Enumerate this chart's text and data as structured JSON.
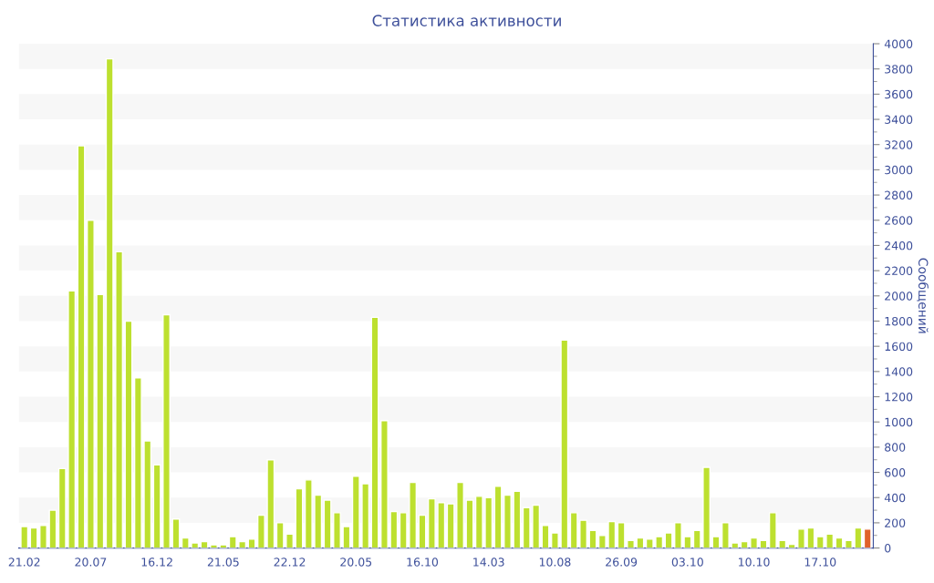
{
  "chart_data": {
    "type": "bar",
    "title": "Статистика активности",
    "ylabel": "Сообщений",
    "categories": [
      "21.02",
      null,
      null,
      null,
      null,
      null,
      null,
      "20.07",
      null,
      null,
      null,
      null,
      null,
      null,
      "16.12",
      null,
      null,
      null,
      null,
      null,
      null,
      "21.05",
      null,
      null,
      null,
      null,
      null,
      null,
      "22.12",
      null,
      null,
      null,
      null,
      null,
      null,
      "20.05",
      null,
      null,
      null,
      null,
      null,
      null,
      "16.10",
      null,
      null,
      null,
      null,
      null,
      null,
      "14.03",
      null,
      null,
      null,
      null,
      null,
      null,
      "10.08",
      null,
      null,
      null,
      null,
      null,
      null,
      "26.09",
      null,
      null,
      null,
      null,
      null,
      null,
      "03.10",
      null,
      null,
      null,
      null,
      null,
      null,
      "10.10",
      null,
      null,
      null,
      null,
      null,
      null,
      "17.10",
      null,
      null,
      null,
      null,
      null
    ],
    "values": [
      170,
      160,
      180,
      300,
      630,
      2040,
      3190,
      2600,
      2010,
      3880,
      2350,
      1800,
      1350,
      850,
      660,
      1850,
      230,
      80,
      40,
      50,
      25,
      25,
      90,
      50,
      70,
      260,
      700,
      200,
      110,
      470,
      540,
      420,
      380,
      280,
      170,
      570,
      510,
      1830,
      1010,
      290,
      280,
      520,
      260,
      390,
      360,
      350,
      520,
      380,
      410,
      400,
      490,
      420,
      450,
      320,
      340,
      180,
      120,
      1650,
      280,
      220,
      140,
      100,
      210,
      200,
      60,
      80,
      70,
      90,
      120,
      200,
      90,
      140,
      640,
      90,
      200,
      40,
      50,
      80,
      60,
      280,
      60,
      30,
      150,
      160,
      90,
      110,
      80,
      60,
      160,
      150
    ],
    "colors": [
      "#bde02f",
      "#bde02f",
      "#bde02f",
      "#bde02f",
      "#bde02f",
      "#bde02f",
      "#bde02f",
      "#bde02f",
      "#bde02f",
      "#bde02f",
      "#bde02f",
      "#bde02f",
      "#bde02f",
      "#bde02f",
      "#bde02f",
      "#bde02f",
      "#bde02f",
      "#bde02f",
      "#bde02f",
      "#bde02f",
      "#bde02f",
      "#bde02f",
      "#bde02f",
      "#bde02f",
      "#bde02f",
      "#bde02f",
      "#bde02f",
      "#bde02f",
      "#bde02f",
      "#bde02f",
      "#bde02f",
      "#bde02f",
      "#bde02f",
      "#bde02f",
      "#bde02f",
      "#bde02f",
      "#bde02f",
      "#bde02f",
      "#bde02f",
      "#bde02f",
      "#bde02f",
      "#bde02f",
      "#bde02f",
      "#bde02f",
      "#bde02f",
      "#bde02f",
      "#bde02f",
      "#bde02f",
      "#bde02f",
      "#bde02f",
      "#bde02f",
      "#bde02f",
      "#bde02f",
      "#bde02f",
      "#bde02f",
      "#bde02f",
      "#bde02f",
      "#bde02f",
      "#bde02f",
      "#bde02f",
      "#bde02f",
      "#bde02f",
      "#bde02f",
      "#bde02f",
      "#bde02f",
      "#bde02f",
      "#bde02f",
      "#bde02f",
      "#bde02f",
      "#bde02f",
      "#bde02f",
      "#bde02f",
      "#bde02f",
      "#bde02f",
      "#bde02f",
      "#bde02f",
      "#bde02f",
      "#bde02f",
      "#bde02f",
      "#bde02f",
      "#bde02f",
      "#bde02f",
      "#bde02f",
      "#bde02f",
      "#bde02f",
      "#bde02f",
      "#bde02f",
      "#bde02f",
      "#bde02f",
      "#e0622a"
    ],
    "ylim": [
      0,
      4000
    ],
    "yticks": [
      0,
      200,
      400,
      600,
      800,
      1000,
      1200,
      1400,
      1600,
      1800,
      2000,
      2200,
      2400,
      2600,
      2800,
      3000,
      3200,
      3400,
      3600,
      3800,
      4000
    ],
    "legend": false
  }
}
